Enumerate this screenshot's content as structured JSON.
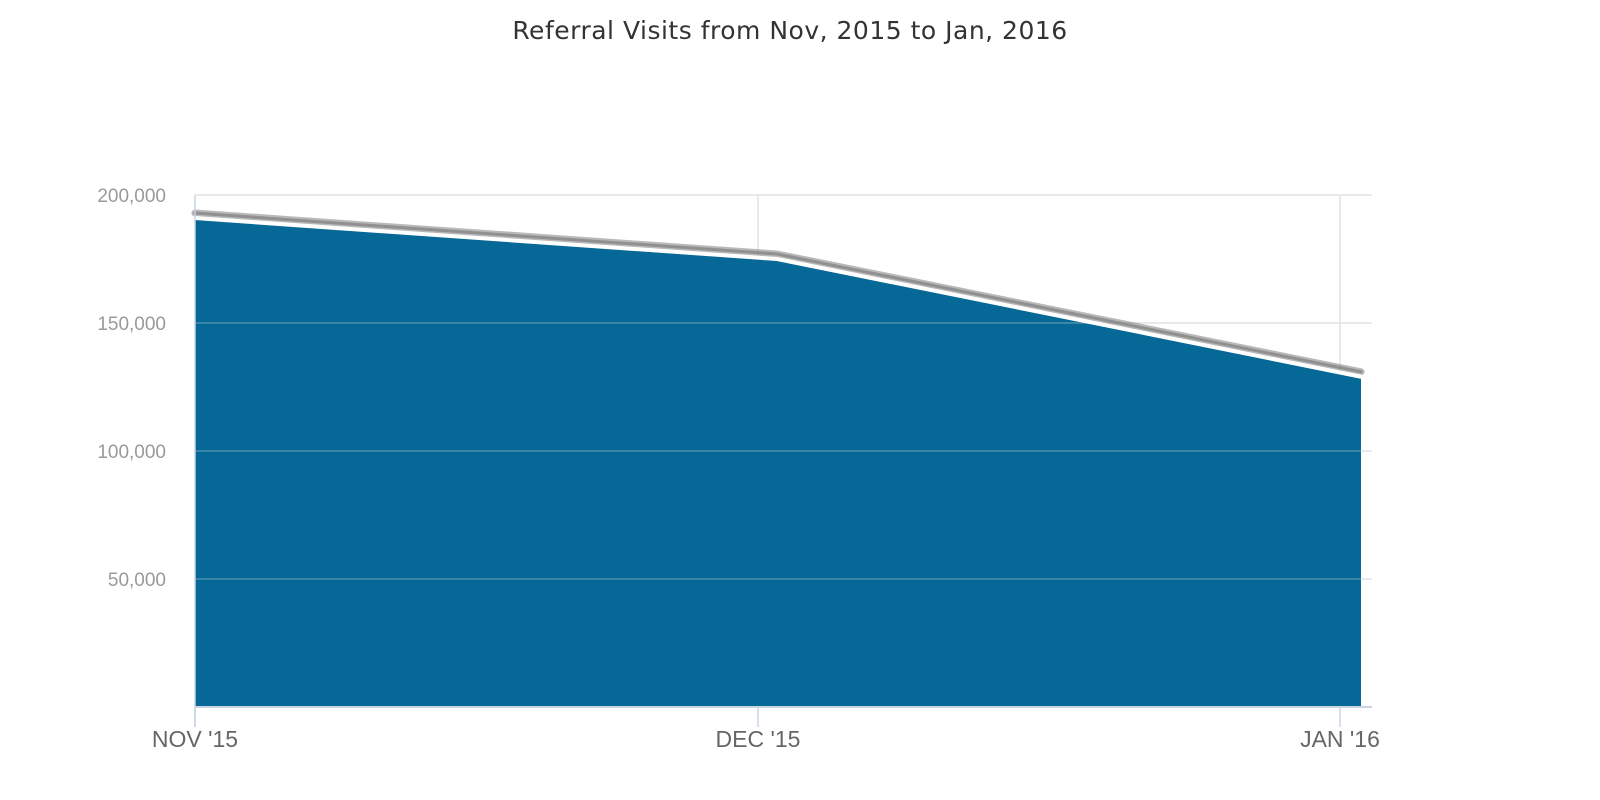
{
  "chart_data": {
    "type": "area",
    "title": "Referral Visits from Nov, 2015 to Jan, 2016",
    "xlabel": "",
    "ylabel": "",
    "categories": [
      "NOV '15",
      "DEC '15",
      "JAN '16"
    ],
    "x": [
      "2015-11",
      "2015-12",
      "2016-01"
    ],
    "series": [
      {
        "values": [
          191000,
          175000,
          129000
        ]
      }
    ],
    "ylim": [
      0,
      200000
    ],
    "yticks": [
      50000,
      100000,
      150000,
      200000
    ],
    "ytick_labels": [
      "50,000",
      "100,000",
      "150,000",
      "200,000"
    ],
    "grid": true,
    "legend": "none",
    "colors": {
      "area": "#066897",
      "line": "#ffffff",
      "shadow": "#7f7f7f",
      "grid": "#e2e2e2",
      "grid_on_area": "#4d8db0",
      "axis": "#c9d5e2"
    }
  }
}
